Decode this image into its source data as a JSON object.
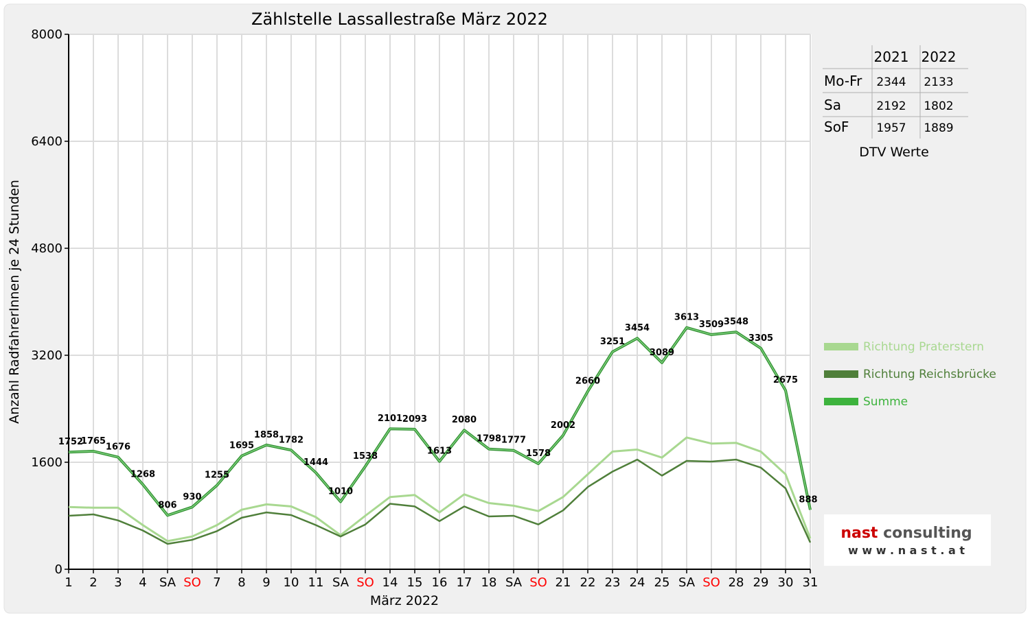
{
  "chart_data": {
    "type": "line",
    "title": "Zählstelle Lassallestraße März 2022",
    "xlabel": "März 2022",
    "ylabel": "Anzahl RadfahrerInnen je 24 Stunden",
    "ylim": [
      0,
      8000
    ],
    "yticks": [
      "0",
      "1600",
      "3200",
      "4800",
      "6400",
      "8000"
    ],
    "grid": true,
    "legend_position": "right",
    "x_tick_labels": [
      "1",
      "2",
      "3",
      "4",
      "SA",
      "SO",
      "7",
      "8",
      "9",
      "10",
      "11",
      "SA",
      "SO",
      "14",
      "15",
      "16",
      "17",
      "18",
      "SA",
      "SO",
      "21",
      "22",
      "23",
      "24",
      "25",
      "SA",
      "SO",
      "28",
      "29",
      "30",
      "31"
    ],
    "highlight_label": "SO",
    "highlight_color": "#ff0000",
    "series": [
      {
        "name": "Richtung Praterstern",
        "color": "#a8d890",
        "values": [
          930,
          920,
          920,
          660,
          420,
          490,
          660,
          890,
          970,
          940,
          780,
          510,
          800,
          1080,
          1110,
          850,
          1120,
          990,
          950,
          870,
          1080,
          1420,
          1760,
          1790,
          1670,
          1970,
          1880,
          1890,
          1760,
          1420,
          460
        ]
      },
      {
        "name": "Richtung Reichsbrücke",
        "color": "#4f7f3a",
        "values": [
          800,
          820,
          730,
          580,
          380,
          440,
          570,
          770,
          850,
          810,
          660,
          490,
          670,
          980,
          940,
          720,
          940,
          790,
          800,
          670,
          880,
          1230,
          1460,
          1640,
          1400,
          1620,
          1610,
          1640,
          1520,
          1210,
          400
        ]
      },
      {
        "name": "Summe",
        "color": "#3db33d",
        "values": [
          1752,
          1765,
          1676,
          1268,
          806,
          930,
          1255,
          1695,
          1858,
          1782,
          1444,
          1010,
          1538,
          2101,
          2093,
          1613,
          2080,
          1798,
          1777,
          1578,
          2002,
          2660,
          3251,
          3454,
          3089,
          3613,
          3509,
          3548,
          3305,
          2675,
          888
        ]
      }
    ],
    "data_labels": [
      "1752",
      "1765",
      "1676",
      "1268",
      "806",
      "930",
      "1255",
      "1695",
      "1858",
      "1782",
      "1444",
      "1010",
      "1538",
      "2101",
      "2093",
      "1613",
      "2080",
      "1798",
      "1777",
      "1578",
      "2002",
      "2660",
      "3251",
      "3454",
      "3089",
      "3613",
      "3509",
      "3548",
      "3305",
      "2675",
      "888"
    ],
    "dtv_table": {
      "headers": [
        "2021",
        "2022"
      ],
      "rows": [
        {
          "label": "Mo-Fr",
          "v2021": "2344",
          "v2022": "2133"
        },
        {
          "label": "Sa",
          "v2021": "2192",
          "v2022": "1802"
        },
        {
          "label": "SoF",
          "v2021": "1957",
          "v2022": "1889"
        }
      ],
      "caption": "DTV Werte"
    },
    "logo": {
      "name": "nast consulting",
      "url": "w w w . n a s t . a t",
      "accent": "#cc0000"
    }
  }
}
